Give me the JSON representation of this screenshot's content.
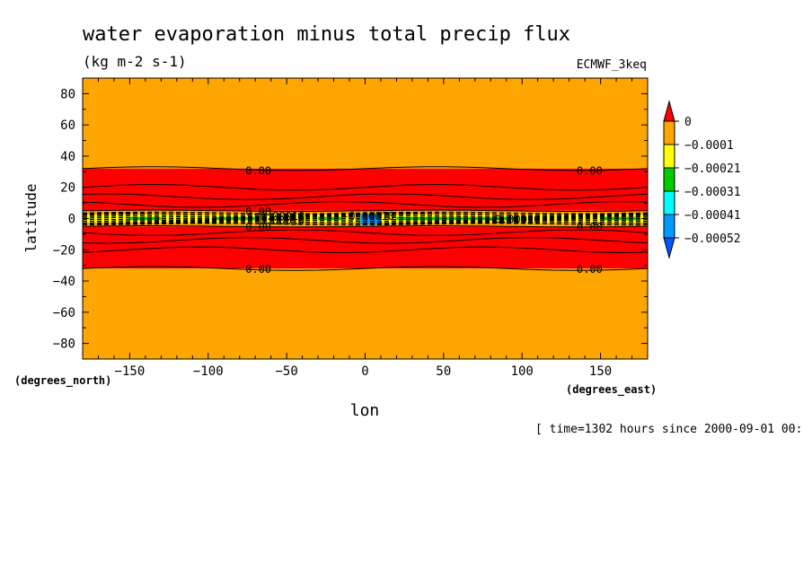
{
  "chart_data": {
    "type": "heatmap",
    "title": "water evaporation minus total precip flux",
    "subtitle": "(kg m-2 s-1)",
    "dataset": "ECMWF_3keq",
    "xlabel": "lon",
    "ylabel": "latitude",
    "x_units": "(degrees_east)",
    "y_units": "(degrees_north)",
    "time_note": "[ time=1302 hours since 2000-09-01 00:",
    "xlim": [
      -180,
      180
    ],
    "ylim": [
      -90,
      90
    ],
    "x_ticks": [
      -150,
      -100,
      -50,
      0,
      50,
      100,
      150
    ],
    "y_ticks": [
      80,
      60,
      40,
      20,
      0,
      -20,
      -40,
      -60,
      -80
    ],
    "colorbar": {
      "levels": [
        "0",
        "-0.0001",
        "-0.00021",
        "-0.00031",
        "-0.00041",
        "-0.00052"
      ],
      "colors": [
        "#ff0000",
        "#ffa500",
        "#ffff00",
        "#00cc00",
        "#00ffff",
        "#0099ff",
        "#0055ff"
      ]
    },
    "bands": [
      {
        "name": "orange-north",
        "lat_from": 90,
        "lat_to": 32,
        "color": "#ffa500"
      },
      {
        "name": "red-north",
        "lat_from": 32,
        "lat_to": 5,
        "color": "#ff0000"
      },
      {
        "name": "orange-equator-north",
        "lat_from": 5,
        "lat_to": 2.5,
        "color": "#ffa500"
      },
      {
        "name": "yellow-equator",
        "lat_from": 2.5,
        "lat_to": -2.5,
        "color": "#ffff00"
      },
      {
        "name": "orange-equator-south",
        "lat_from": -2.5,
        "lat_to": -5,
        "color": "#ffa500"
      },
      {
        "name": "red-south",
        "lat_from": -5,
        "lat_to": -32,
        "color": "#ff0000"
      },
      {
        "name": "orange-south",
        "lat_from": -32,
        "lat_to": -90,
        "color": "#ffa500"
      }
    ],
    "contour_labels": [
      {
        "text": "0.00",
        "lon": -68,
        "lat": 31
      },
      {
        "text": "0.00",
        "lon": 143,
        "lat": 31
      },
      {
        "text": "0.00",
        "lon": -68,
        "lat": -32
      },
      {
        "text": "0.00",
        "lon": 143,
        "lat": -32
      },
      {
        "text": "0.00",
        "lon": -68,
        "lat": 5
      },
      {
        "text": "0.00",
        "lon": -68,
        "lat": -5
      },
      {
        "text": "0.00",
        "lon": 143,
        "lat": -5
      },
      {
        "text": "-0.00010",
        "lon": -55,
        "lat": 2
      },
      {
        "text": "-0.00010",
        "lon": -55,
        "lat": -1
      },
      {
        "text": "-0.00010",
        "lon": 95,
        "lat": 0
      },
      {
        "text": "-0.00010",
        "lon": 2,
        "lat": 2
      }
    ]
  }
}
